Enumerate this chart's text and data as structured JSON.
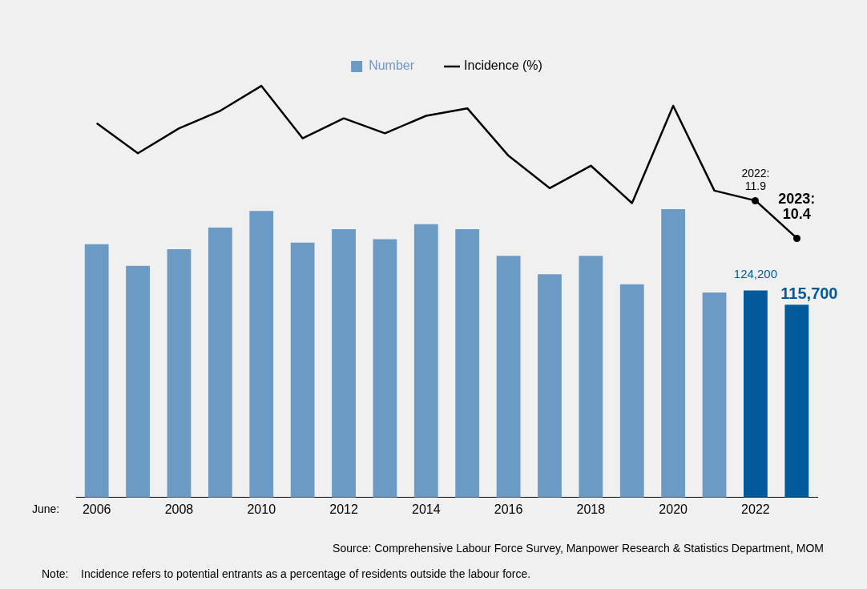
{
  "chart_data": {
    "type": "bar",
    "categories": [
      "2006",
      null,
      "2008",
      null,
      "2010",
      null,
      "2012",
      null,
      "2014",
      null,
      "2016",
      null,
      "2018",
      null,
      "2020",
      null,
      "2022",
      null
    ],
    "xlabel": "June:",
    "series": [
      {
        "name": "Number",
        "colors": [
          "#6b9ac4",
          "#6b9ac4",
          "#6b9ac4",
          "#6b9ac4",
          "#6b9ac4",
          "#6b9ac4",
          "#6b9ac4",
          "#6b9ac4",
          "#6b9ac4",
          "#6b9ac4",
          "#6b9ac4",
          "#6b9ac4",
          "#6b9ac4",
          "#6b9ac4",
          "#6b9ac4",
          "#6b9ac4",
          "#005a9c",
          "#005a9c"
        ],
        "color": "#6b9ac4",
        "values": [
          152000,
          139000,
          149000,
          162000,
          172000,
          153000,
          161000,
          155000,
          164000,
          161000,
          145000,
          134000,
          145000,
          128000,
          173000,
          123000,
          124200,
          115700
        ],
        "value_labels": [
          null,
          null,
          null,
          null,
          null,
          null,
          null,
          null,
          null,
          null,
          null,
          null,
          null,
          null,
          null,
          null,
          "124,200",
          "115,700"
        ]
      },
      {
        "name": "Incidence (%)",
        "type": "line",
        "axis": "y2",
        "color": "#000000",
        "values": [
          15.0,
          13.8,
          14.8,
          15.5,
          16.5,
          14.4,
          15.2,
          14.6,
          15.3,
          15.6,
          13.7,
          12.4,
          13.3,
          11.8,
          15.7,
          12.3,
          11.9,
          10.4
        ],
        "value_labels": [
          null,
          null,
          null,
          null,
          null,
          null,
          null,
          null,
          null,
          null,
          null,
          null,
          null,
          null,
          null,
          null,
          "2022: 11.9",
          "2023: 10.4"
        ]
      }
    ],
    "tick_labels": "x",
    "grid": false,
    "legend": "top",
    "annotations": [
      "Source: Comprehensive Labour Force Survey, Manpower Research & Statistics Department, MOM",
      "Note:    Incidence refers to potential entrants as a percentage of residents outside the labour force."
    ]
  }
}
